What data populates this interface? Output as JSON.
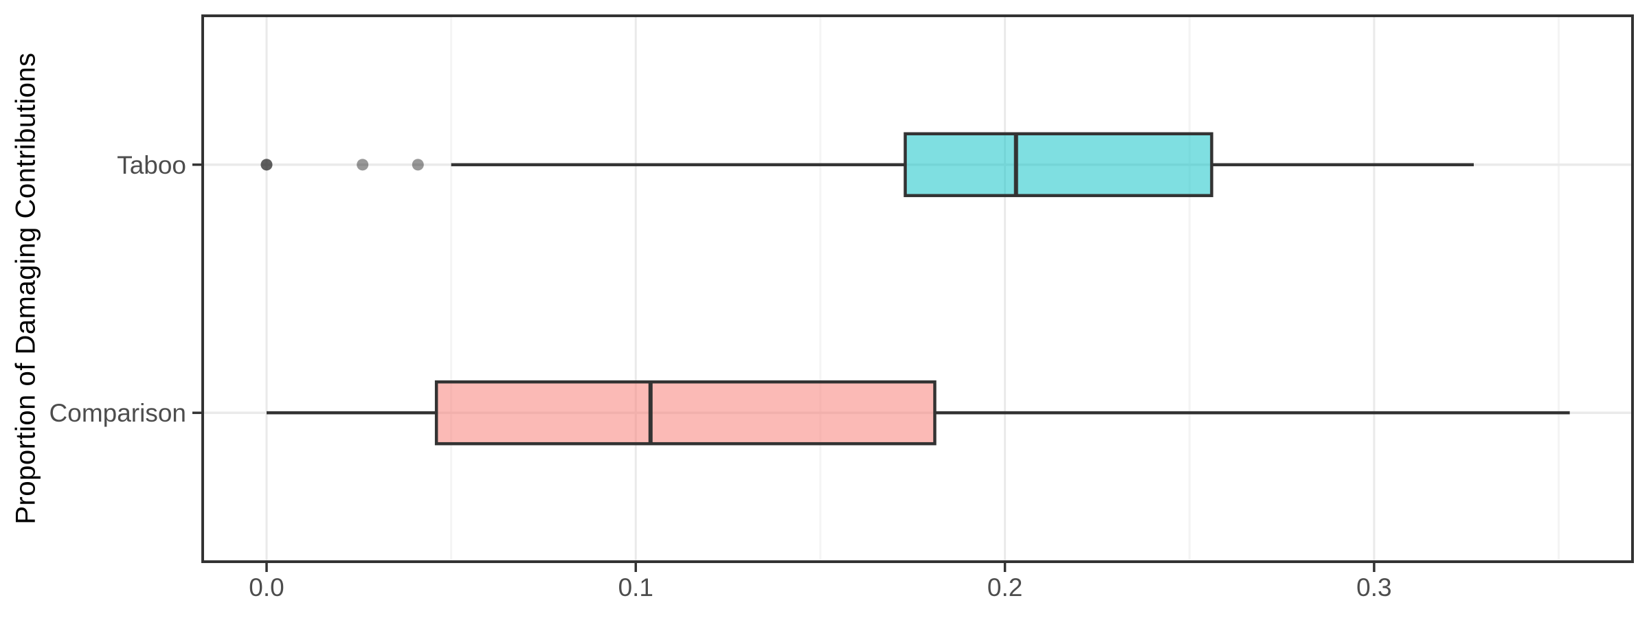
{
  "chart_data": {
    "type": "boxplot",
    "orientation": "horizontal",
    "title": "",
    "xlabel": "",
    "ylabel": "Proportion of Damaging Contributions",
    "x_axis": {
      "range": [
        -0.0173,
        0.37
      ],
      "major_ticks": [
        0.0,
        0.1,
        0.2,
        0.3
      ],
      "tick_labels": [
        "0.0",
        "0.1",
        "0.2",
        "0.3"
      ],
      "minor_ticks": [
        0.05,
        0.15,
        0.25,
        0.35
      ]
    },
    "categories": [
      "Taboo",
      "Comparison"
    ],
    "series": [
      {
        "name": "Taboo",
        "whisker_min": 0.05,
        "q1": 0.173,
        "median": 0.203,
        "q3": 0.256,
        "whisker_max": 0.327,
        "outliers": [
          0.0,
          0.0,
          0.026,
          0.041
        ],
        "fill": "#00BFC4",
        "fill_opacity": 0.5
      },
      {
        "name": "Comparison",
        "whisker_min": 0.0,
        "q1": 0.046,
        "median": 0.104,
        "q3": 0.181,
        "whisker_max": 0.353,
        "outliers": [],
        "fill": "#F8766D",
        "fill_opacity": 0.5
      }
    ],
    "legend": "none",
    "grid": "on",
    "style": {
      "panel_background": "#FFFFFF",
      "panel_border": "#333333",
      "grid_major": "#EAEAEA",
      "grid_minor": "#F4F4F4",
      "box_stroke": "#333333",
      "axis_text_color": "#4D4D4D",
      "axis_title_color": "#000000",
      "tick_color": "#333333",
      "outlier_color": "#1A1A1A",
      "outlier_opacity": 0.45
    }
  }
}
